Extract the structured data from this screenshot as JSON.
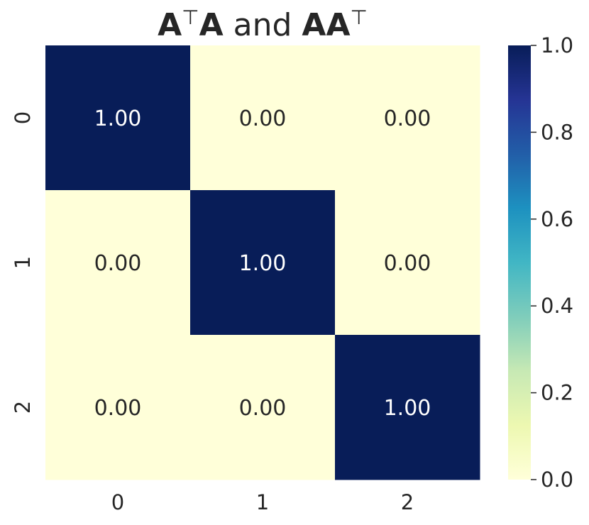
{
  "chart_data": {
    "type": "heatmap",
    "title": {
      "parts": [
        {
          "text": "A",
          "bold": true,
          "sup": false
        },
        {
          "text": "⊤",
          "bold": false,
          "sup": true
        },
        {
          "text": "A",
          "bold": true,
          "sup": false
        },
        {
          "text": " and ",
          "bold": false,
          "sup": false
        },
        {
          "text": "AA",
          "bold": true,
          "sup": false
        },
        {
          "text": "⊤",
          "bold": false,
          "sup": true
        }
      ]
    },
    "x_categories": [
      "0",
      "1",
      "2"
    ],
    "y_categories": [
      "0",
      "1",
      "2"
    ],
    "values": [
      [
        1.0,
        0.0,
        0.0
      ],
      [
        0.0,
        1.0,
        0.0
      ],
      [
        0.0,
        0.0,
        1.0
      ]
    ],
    "value_format": "0.00",
    "colormap": {
      "name": "YlGnBu",
      "stops": [
        "#ffffd9",
        "#edf8b1",
        "#c7e9b4",
        "#7fcdbb",
        "#41b6c4",
        "#1d91c0",
        "#225ea8",
        "#253494",
        "#081d58"
      ]
    },
    "vmin": 0.0,
    "vmax": 1.0,
    "colorbar_ticks": [
      "0.0",
      "0.2",
      "0.4",
      "0.6",
      "0.8",
      "1.0"
    ],
    "annotation_colors": {
      "on_dark": "#ffffff",
      "on_light": "#262626"
    },
    "grid": false,
    "legend": "colorbar-right"
  }
}
